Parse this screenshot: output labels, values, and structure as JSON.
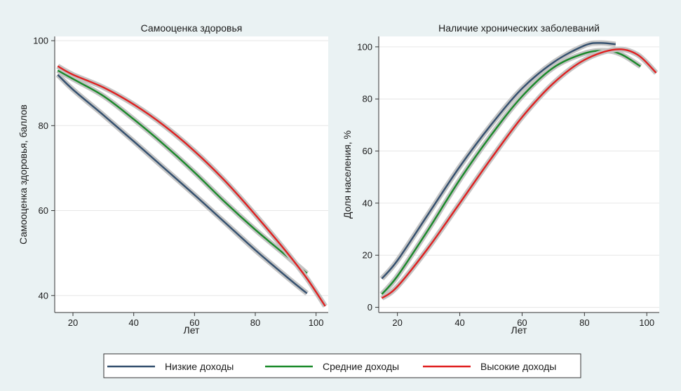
{
  "chart_data": [
    {
      "type": "line",
      "title": "Самооценка здоровья",
      "xlabel": "Лет",
      "ylabel": "Самооценка здоровья, баллов",
      "xlim": [
        14,
        104
      ],
      "ylim": [
        36,
        101
      ],
      "xticks": [
        20,
        40,
        60,
        80,
        100
      ],
      "yticks": [
        40,
        60,
        80,
        100
      ],
      "grid": true,
      "series": [
        {
          "name": "Низкие доходы",
          "color": "#34506f",
          "x": [
            15,
            20,
            30,
            40,
            50,
            60,
            70,
            80,
            90,
            97
          ],
          "y": [
            92,
            88.5,
            82.5,
            76.3,
            70,
            63.7,
            57.2,
            50.7,
            44.6,
            40.5
          ]
        },
        {
          "name": "Средние доходы",
          "color": "#1a8a2a",
          "x": [
            15,
            20,
            30,
            40,
            50,
            60,
            70,
            80,
            90,
            97
          ],
          "y": [
            93,
            91,
            87,
            81.5,
            75.5,
            69,
            62,
            55.5,
            49.5,
            45.2
          ]
        },
        {
          "name": "Высокие доходы",
          "color": "#e02020",
          "x": [
            15,
            20,
            30,
            40,
            50,
            60,
            70,
            80,
            90,
            97,
            103
          ],
          "y": [
            94,
            92,
            89,
            85,
            80,
            74,
            67,
            59,
            50.5,
            44,
            37.5
          ]
        }
      ]
    },
    {
      "type": "line",
      "title": "Наличие хронических заболеваний",
      "xlabel": "Лет",
      "ylabel": "Доля населения, %",
      "xlim": [
        14,
        104
      ],
      "ylim": [
        -2,
        104
      ],
      "xticks": [
        20,
        40,
        60,
        80,
        100
      ],
      "yticks": [
        0,
        20,
        40,
        60,
        80,
        100
      ],
      "grid": true,
      "series": [
        {
          "name": "Низкие доходы",
          "color": "#34506f",
          "x": [
            15,
            20,
            30,
            40,
            50,
            60,
            70,
            80,
            85,
            90
          ],
          "y": [
            11,
            18,
            36,
            54,
            70,
            84,
            94,
            100.5,
            101.5,
            101
          ]
        },
        {
          "name": "Средние доходы",
          "color": "#1a8a2a",
          "x": [
            15,
            20,
            30,
            40,
            50,
            60,
            70,
            80,
            87,
            92,
            98
          ],
          "y": [
            5,
            12,
            30,
            49,
            66,
            81,
            92,
            97.5,
            98.5,
            97,
            92.5
          ]
        },
        {
          "name": "Высокие доходы",
          "color": "#e02020",
          "x": [
            15,
            20,
            30,
            40,
            50,
            60,
            70,
            80,
            90,
            97,
            103
          ],
          "y": [
            3.5,
            8,
            23,
            40,
            57,
            73,
            86,
            95,
            99,
            97,
            90
          ]
        }
      ]
    }
  ],
  "legend": {
    "placement": "bottom",
    "items": [
      {
        "label": "Низкие доходы",
        "color": "#34506f"
      },
      {
        "label": "Средние доходы",
        "color": "#1a8a2a"
      },
      {
        "label": "Высокие доходы",
        "color": "#e02020"
      }
    ]
  }
}
